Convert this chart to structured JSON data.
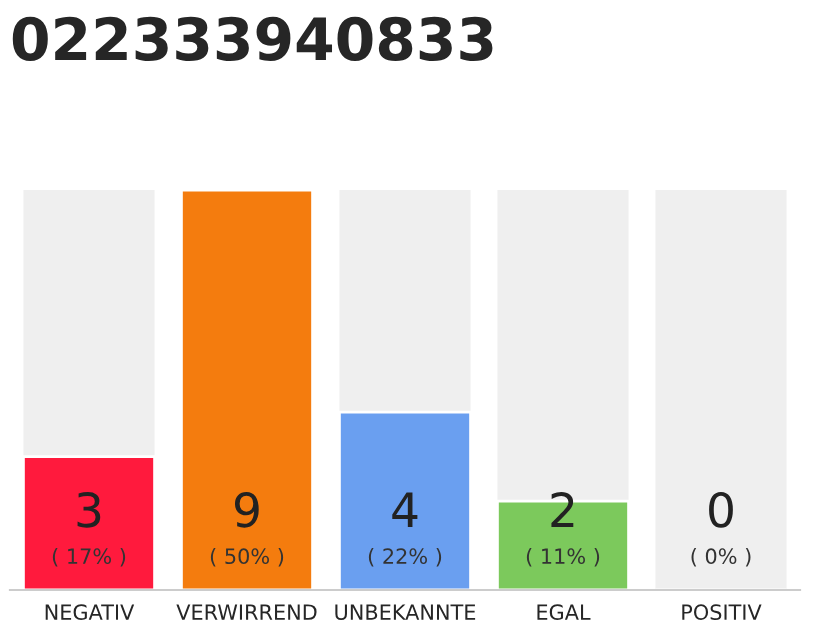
{
  "chart_data": {
    "type": "bar",
    "title": "022333940833",
    "categories": [
      "NEGATIV",
      "VERWIRREND",
      "UNBEKANNTE",
      "EGAL",
      "POSITIV"
    ],
    "values": [
      3,
      9,
      4,
      2,
      0
    ],
    "colors": [
      "#ff1a3d",
      "#f47c0e",
      "#6a9ff0",
      "#7cc95c",
      null
    ],
    "data_labels": true,
    "annotations": [
      "( 17% )",
      "( 50% )",
      "( 22% )",
      "( 11% )",
      "( 0% )"
    ],
    "grid": false,
    "legend": false
  }
}
